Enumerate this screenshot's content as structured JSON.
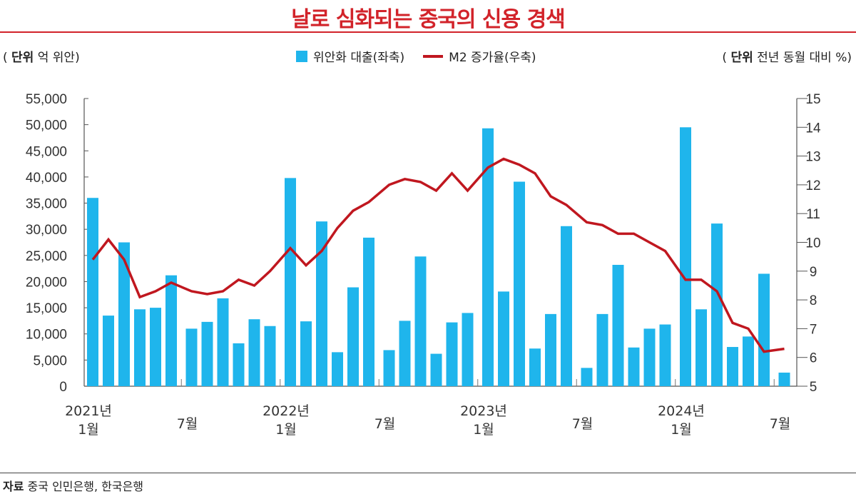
{
  "title": "날로 심화되는 중국의 신용 경색",
  "left_unit": {
    "label": "단위",
    "text": "억 위안"
  },
  "right_unit": {
    "label": "단위",
    "text": "전년 동월 대비 %"
  },
  "legend": {
    "bars": "위안화 대출(좌축)",
    "line": "M2 증가율(우축)"
  },
  "source": {
    "label": "자료",
    "text": "중국 인민은행, 한국은행"
  },
  "chart_data": {
    "type": "bar+line",
    "title": "날로 심화되는 중국의 신용 경색",
    "colors": {
      "bars": "#1fb5ec",
      "line": "#c0171f",
      "title": "#d2232a"
    },
    "x_tick_labels": [
      {
        "index": 0,
        "year": "2021년",
        "month": "1월"
      },
      {
        "index": 6,
        "year": "",
        "month": "7월"
      },
      {
        "index": 12,
        "year": "2022년",
        "month": "1월"
      },
      {
        "index": 18,
        "year": "",
        "month": "7월"
      },
      {
        "index": 24,
        "year": "2023년",
        "month": "1월"
      },
      {
        "index": 30,
        "year": "",
        "month": "7월"
      },
      {
        "index": 36,
        "year": "2024년",
        "month": "1월"
      },
      {
        "index": 42,
        "year": "",
        "month": "7월"
      }
    ],
    "categories": [
      "2021-01",
      "2021-02",
      "2021-03",
      "2021-04",
      "2021-05",
      "2021-06",
      "2021-07",
      "2021-08",
      "2021-09",
      "2021-10",
      "2021-11",
      "2021-12",
      "2022-01",
      "2022-02",
      "2022-03",
      "2022-04",
      "2022-05",
      "2022-06",
      "2022-07",
      "2022-08",
      "2022-09",
      "2022-10",
      "2022-11",
      "2022-12",
      "2023-01",
      "2023-02",
      "2023-03",
      "2023-04",
      "2023-05",
      "2023-06",
      "2023-07",
      "2023-08",
      "2023-09",
      "2023-10",
      "2023-11",
      "2023-12",
      "2024-01",
      "2024-02",
      "2024-03",
      "2024-04",
      "2024-05",
      "2024-06",
      "2024-07"
    ],
    "series": [
      {
        "name": "위안화 대출(좌축)",
        "type": "bar",
        "axis": "left",
        "values": [
          36000,
          13500,
          27500,
          14700,
          15000,
          21200,
          11000,
          12300,
          16800,
          8200,
          12800,
          11500,
          39800,
          12400,
          31500,
          6500,
          18900,
          28400,
          6900,
          12500,
          24800,
          6200,
          12200,
          14000,
          49300,
          18100,
          39100,
          7200,
          13800,
          30600,
          3500,
          13800,
          23200,
          7400,
          11000,
          11800,
          49500,
          14700,
          31100,
          7500,
          9500,
          21500,
          2600
        ]
      },
      {
        "name": "M2 증가율(우축)",
        "type": "line",
        "axis": "right",
        "values": [
          9.4,
          10.1,
          9.4,
          8.1,
          8.3,
          8.6,
          8.3,
          8.2,
          8.3,
          8.7,
          8.5,
          9.0,
          9.8,
          9.2,
          9.7,
          10.5,
          11.1,
          11.4,
          12.0,
          12.2,
          12.1,
          11.8,
          12.4,
          11.8,
          12.6,
          12.9,
          12.7,
          12.4,
          11.6,
          11.3,
          10.7,
          10.6,
          10.3,
          10.3,
          10.0,
          9.7,
          8.7,
          8.7,
          8.3,
          7.2,
          7.0,
          6.2,
          6.3
        ]
      }
    ],
    "left_axis": {
      "range": [
        0,
        55000
      ],
      "ticks": [
        "0",
        "5,000",
        "10,000",
        "15,000",
        "20,000",
        "25,000",
        "30,000",
        "35,000",
        "40,000",
        "45,000",
        "50,000",
        "55,000"
      ]
    },
    "right_axis": {
      "range": [
        5,
        15
      ],
      "ticks": [
        "5",
        "6",
        "7",
        "8",
        "9",
        "10",
        "11",
        "12",
        "13",
        "14",
        "15"
      ]
    },
    "grid": false,
    "legend_position": "top-center"
  }
}
